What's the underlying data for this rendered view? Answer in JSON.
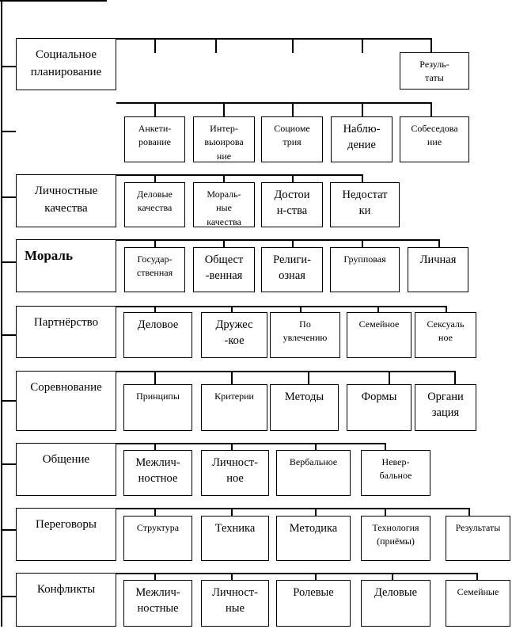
{
  "groups": [
    {
      "title": "Социальное\nпланирование",
      "children": [
        "Резуль-\nтаты"
      ]
    },
    {
      "title": "",
      "children": [
        "Анкети-\nрование",
        "Интер-\nвьюирова\nние",
        "Социоме\nтрия",
        "Наблю-\nдение",
        "Собеседова\nние"
      ]
    },
    {
      "title": "Личностные\nкачества",
      "children": [
        "Деловые\nкачества",
        "Мораль-\nные\nкачества",
        "Достои\nн-ства",
        "Недостат\nки"
      ]
    },
    {
      "title": "Мораль",
      "children": [
        "Государ-\nственная",
        "Общест\n-венная",
        "Религи-\nозная",
        "Групповая",
        "Личная"
      ]
    },
    {
      "title": "Партнёрство",
      "children": [
        "Деловое",
        "Дружес\n-кое",
        "По\nувлечению",
        "Семейное",
        "Сексуаль\nное"
      ]
    },
    {
      "title": "Соревнование",
      "children": [
        "Принципы",
        "Критерии",
        "Методы",
        "Формы",
        "Органи\nзация"
      ]
    },
    {
      "title": "Общение",
      "children": [
        "Межлич-\nностное",
        "Личност-\nное",
        "Вербальное",
        "Невер-\nбальное"
      ]
    },
    {
      "title": "Переговоры",
      "children": [
        "Структура",
        "Техника",
        "Методика",
        "Технология\n(приёмы)",
        "Результаты"
      ]
    },
    {
      "title": "Конфликты",
      "children": [
        "Межлич-\nностные",
        "Личност-\nные",
        "Ролевые",
        "Деловые",
        "Семейные"
      ]
    }
  ]
}
